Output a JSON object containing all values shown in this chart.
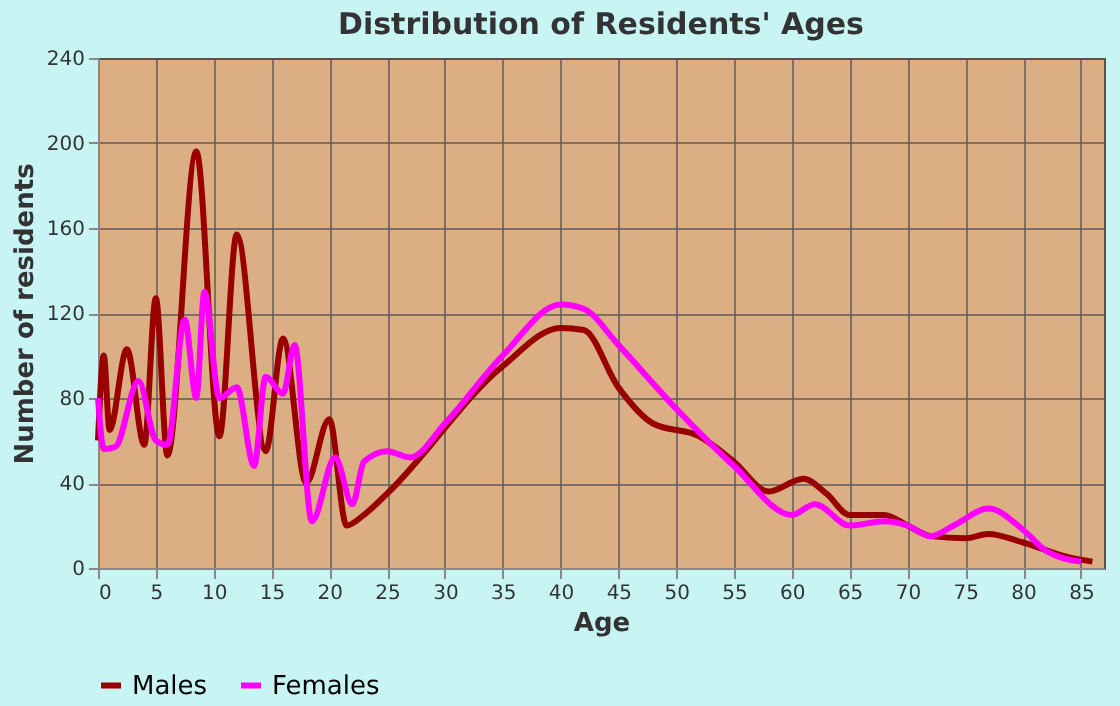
{
  "chart_data": {
    "type": "line",
    "title": "Distribution of Residents' Ages",
    "xlabel": "Age",
    "ylabel": "Number of residents",
    "xlim": [
      0,
      87
    ],
    "xticks": [
      0,
      5,
      10,
      15,
      20,
      25,
      30,
      35,
      40,
      45,
      50,
      55,
      60,
      65,
      70,
      75,
      80,
      85
    ],
    "ylim": [
      0,
      240
    ],
    "yticks": [
      0,
      40,
      80,
      120,
      160,
      200,
      240
    ],
    "grid": true,
    "legend": "bottom",
    "series": [
      {
        "name": "Males",
        "color": "#990000",
        "x": [
          0,
          0.5,
          1,
          2.5,
          4,
          5,
          6,
          8.5,
          10.5,
          12,
          14.5,
          16,
          18,
          20,
          21.5,
          23,
          25,
          35,
          40,
          42,
          45,
          48,
          52,
          55,
          58,
          61,
          63,
          65,
          68,
          70,
          72,
          75,
          77,
          80,
          84,
          86
        ],
        "values": [
          60,
          100,
          65,
          103,
          58,
          127,
          53,
          196,
          62,
          157,
          55,
          108,
          40,
          70,
          20,
          25,
          35,
          95,
          113,
          112,
          85,
          68,
          62,
          50,
          36,
          42,
          35,
          25,
          25,
          20,
          15,
          14,
          16,
          12,
          5,
          3
        ]
      },
      {
        "name": "Females",
        "color": "#ff00ff",
        "x": [
          0,
          0.5,
          1.5,
          3.5,
          5,
          6,
          7.5,
          8.5,
          9.2,
          10.5,
          12,
          13.5,
          14.5,
          16,
          17,
          18.5,
          20.5,
          22,
          23,
          25,
          27,
          30,
          35,
          40,
          42,
          45,
          50,
          55,
          60,
          62,
          65,
          68,
          70,
          72,
          74,
          77,
          80,
          82,
          85
        ],
        "values": [
          80,
          56,
          57,
          88,
          60,
          58,
          117,
          80,
          130,
          80,
          85,
          48,
          90,
          82,
          105,
          22,
          52,
          30,
          50,
          55,
          52,
          68,
          100,
          124,
          122,
          105,
          75,
          48,
          25,
          30,
          20,
          22,
          20,
          15,
          20,
          28,
          18,
          8,
          3
        ]
      }
    ]
  }
}
